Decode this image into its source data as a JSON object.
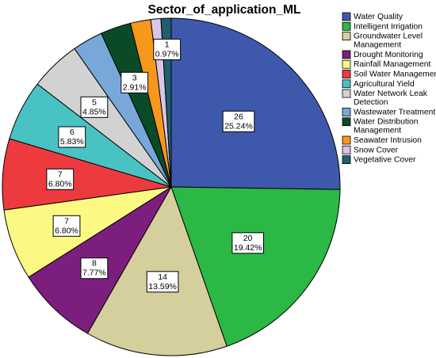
{
  "chart_data": {
    "type": "pie",
    "title": "Sector_of_application_ML",
    "legend_position": "right",
    "slices": [
      {
        "name": "Water Quality",
        "legend_lines": [
          "Water Quality"
        ],
        "count": "26",
        "percent": "25.24%",
        "value": 26,
        "color": "#3e58ac"
      },
      {
        "name": "Intelligent Irrigation",
        "legend_lines": [
          "Intelligent Irrigation"
        ],
        "count": "20",
        "percent": "19.42%",
        "value": 20,
        "color": "#2bb845"
      },
      {
        "name": "Groundwater Level Management",
        "legend_lines": [
          "Groundwater Level",
          "Management"
        ],
        "count": "14",
        "percent": "13.59%",
        "value": 14,
        "color": "#d5cf9e"
      },
      {
        "name": "Drought Monitoring",
        "legend_lines": [
          "Drought Monitoring"
        ],
        "count": "8",
        "percent": "7.77%",
        "value": 8,
        "color": "#7c1e7e"
      },
      {
        "name": "Rainfall Management",
        "legend_lines": [
          "Rainfall Management"
        ],
        "count": "7",
        "percent": "6.80%",
        "value": 7,
        "color": "#fbf982"
      },
      {
        "name": "Soil Water Management",
        "legend_lines": [
          "Soil Water Management"
        ],
        "count": "7",
        "percent": "6.80%",
        "value": 7,
        "color": "#ed3a3e"
      },
      {
        "name": "Agricultural Yield",
        "legend_lines": [
          "Agricultural Yield"
        ],
        "count": "6",
        "percent": "5.83%",
        "value": 6,
        "color": "#49c2c4"
      },
      {
        "name": "Water Network Leak Detection",
        "legend_lines": [
          "Water Network Leak",
          "Detection"
        ],
        "count": "5",
        "percent": "4.85%",
        "value": 5,
        "color": "#d2d2d2"
      },
      {
        "name": "Wastewater Treatment",
        "legend_lines": [
          "Wastewater Treatment"
        ],
        "count": "",
        "percent": "",
        "value": 3,
        "color": "#78a8da"
      },
      {
        "name": "Water Distribution Management",
        "legend_lines": [
          "Water Distribution",
          "Management"
        ],
        "count": "3",
        "percent": "2.91%",
        "value": 3,
        "color": "#0b4a27"
      },
      {
        "name": "Seawater Intrusion",
        "legend_lines": [
          "Seawater Intrusion"
        ],
        "count": "",
        "percent": "",
        "value": 2,
        "color": "#f7981d"
      },
      {
        "name": "Snow Cover",
        "legend_lines": [
          "Snow Cover"
        ],
        "count": "",
        "percent": "",
        "value": 1,
        "color": "#d9c4ea"
      },
      {
        "name": "Vegetative Cover",
        "legend_lines": [
          "Vegetative Cover"
        ],
        "count": "1",
        "percent": "0.97%",
        "value": 1,
        "color": "#1f5f6f"
      }
    ]
  }
}
